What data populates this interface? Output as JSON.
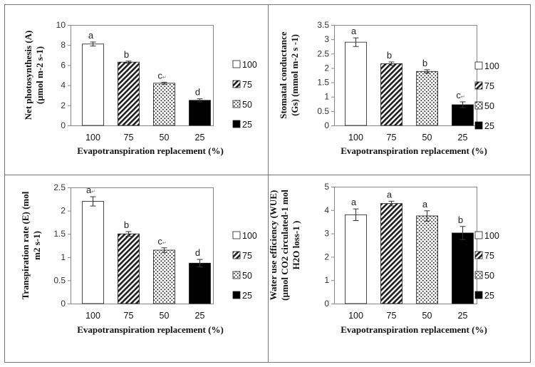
{
  "chart_data": [
    {
      "type": "bar",
      "categories": [
        "100",
        "75",
        "50",
        "25"
      ],
      "values": [
        8.1,
        6.3,
        4.2,
        2.5
      ],
      "errors": [
        0.2,
        0.1,
        0.1,
        0.15
      ],
      "labels": [
        "a",
        "b",
        "c↵",
        "d"
      ],
      "ylim": [
        0,
        10
      ],
      "yticks": [
        "0",
        "2",
        "4",
        "6",
        "8",
        "10"
      ],
      "ylabel": [
        "Net photosynthesis (A)",
        "(µmol m-2 s-1)"
      ],
      "xlabel": "Evapotranspiration replacement  (%)",
      "legend": [
        "100",
        "75",
        "50",
        "25"
      ]
    },
    {
      "type": "bar",
      "categories": [
        "100",
        "75",
        "50",
        "25"
      ],
      "values": [
        2.9,
        2.15,
        1.88,
        0.72
      ],
      "errors": [
        0.15,
        0.06,
        0.06,
        0.1
      ],
      "labels": [
        "a",
        "b",
        "b",
        "c↵"
      ],
      "ylim": [
        0,
        3.5
      ],
      "yticks": [
        "0",
        "0.5",
        "1",
        "1.5",
        "2",
        "2.5",
        "3",
        "3.5"
      ],
      "ylabel": [
        "Stomatal conductance",
        "(Gs) (mmol m-2 s -1)"
      ],
      "xlabel": "Evapotranspiration replacement  (%)",
      "legend": [
        "100",
        "75",
        "50",
        "25"
      ]
    },
    {
      "type": "bar",
      "categories": [
        "100",
        "75",
        "50",
        "25"
      ],
      "values": [
        2.2,
        1.5,
        1.15,
        0.87
      ],
      "errors": [
        0.1,
        0.05,
        0.05,
        0.08
      ],
      "labels": [
        "a↵",
        "b",
        "c↵",
        "d"
      ],
      "ylim": [
        0,
        2.5
      ],
      "yticks": [
        "0",
        "0.5",
        "1",
        "1.5",
        "2",
        "2.5"
      ],
      "ylabel": [
        "Transpiration rate (E) (mol",
        "m2 s-1)"
      ],
      "xlabel": "Evapotranspiration replacement  (%)",
      "legend": [
        "100",
        "75",
        "50",
        "25"
      ]
    },
    {
      "type": "bar",
      "categories": [
        "100",
        "75",
        "50",
        "25"
      ],
      "values": [
        3.8,
        4.28,
        3.75,
        3.02
      ],
      "errors": [
        0.25,
        0.1,
        0.22,
        0.28
      ],
      "labels": [
        "a",
        "a",
        "a",
        "b"
      ],
      "ylim": [
        0,
        5
      ],
      "yticks": [
        "0",
        "1",
        "2",
        "3",
        "4",
        "5"
      ],
      "ylabel": [
        "Water use efficiency (WUE)",
        "(µmol CO2 circulated-1 mol",
        "H2O loss-1 )"
      ],
      "xlabel": "Evapotranspiration replacement (%)",
      "legend": [
        "100",
        "75",
        "50",
        "25"
      ]
    }
  ]
}
